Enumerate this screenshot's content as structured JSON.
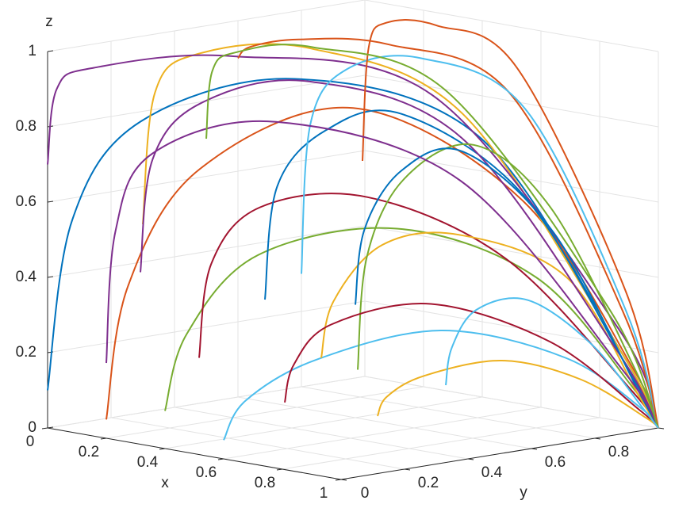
{
  "chart_data": {
    "type": "line3d",
    "xlabel": "x",
    "ylabel": "y",
    "zlabel": "z",
    "xlim": [
      0,
      1
    ],
    "ylim": [
      0,
      1
    ],
    "zlim": [
      0,
      1
    ],
    "xticks": [
      0,
      0.2,
      0.4,
      0.6,
      0.8,
      1
    ],
    "yticks": [
      0,
      0.2,
      0.4,
      0.6,
      0.8,
      1
    ],
    "zticks": [
      0,
      0.2,
      0.4,
      0.6,
      0.8,
      1
    ],
    "grid": true,
    "series": [
      {
        "color": "#0072BD",
        "x": [
          0,
          0.03,
          0.1,
          0.3,
          0.6,
          0.9,
          1
        ],
        "y": [
          0,
          0.05,
          0.2,
          0.5,
          0.8,
          0.97,
          1
        ],
        "z": [
          0.1,
          0.55,
          0.8,
          0.9,
          0.75,
          0.2,
          0
        ]
      },
      {
        "color": "#D95319",
        "x": [
          0.2,
          0.22,
          0.3,
          0.5,
          0.75,
          0.95,
          1
        ],
        "y": [
          0,
          0.05,
          0.2,
          0.5,
          0.8,
          0.97,
          1
        ],
        "z": [
          0.05,
          0.4,
          0.7,
          0.85,
          0.6,
          0.15,
          0
        ]
      },
      {
        "color": "#EDB120",
        "x": [
          0,
          0.02,
          0.08,
          0.25,
          0.55,
          0.9,
          1
        ],
        "y": [
          0.3,
          0.32,
          0.4,
          0.6,
          0.8,
          0.97,
          1
        ],
        "z": [
          0.5,
          0.85,
          0.95,
          0.96,
          0.8,
          0.2,
          0
        ]
      },
      {
        "color": "#7E2F8E",
        "x": [
          0,
          0.01,
          0.05,
          0.2,
          0.5,
          0.9,
          1
        ],
        "y": [
          0,
          0.02,
          0.1,
          0.4,
          0.75,
          0.97,
          1
        ],
        "z": [
          0.7,
          0.9,
          0.95,
          0.96,
          0.85,
          0.25,
          0
        ]
      },
      {
        "color": "#77AC30",
        "x": [
          0.4,
          0.42,
          0.5,
          0.65,
          0.8,
          0.95,
          1
        ],
        "y": [
          0,
          0.05,
          0.2,
          0.5,
          0.8,
          0.97,
          1
        ],
        "z": [
          0.1,
          0.3,
          0.5,
          0.55,
          0.4,
          0.1,
          0
        ]
      },
      {
        "color": "#4DBEEE",
        "x": [
          0.6,
          0.62,
          0.7,
          0.8,
          0.9,
          0.98,
          1
        ],
        "y": [
          0,
          0.05,
          0.2,
          0.5,
          0.8,
          0.97,
          1
        ],
        "z": [
          0.05,
          0.15,
          0.25,
          0.3,
          0.2,
          0.05,
          0
        ]
      },
      {
        "color": "#A2142F",
        "x": [
          0.3,
          0.32,
          0.4,
          0.55,
          0.75,
          0.95,
          1
        ],
        "y": [
          0.2,
          0.22,
          0.3,
          0.5,
          0.75,
          0.96,
          1
        ],
        "z": [
          0.2,
          0.45,
          0.6,
          0.62,
          0.45,
          0.1,
          0
        ]
      },
      {
        "color": "#0072BD",
        "x": [
          0.2,
          0.22,
          0.3,
          0.45,
          0.7,
          0.93,
          1
        ],
        "y": [
          0.5,
          0.52,
          0.6,
          0.7,
          0.85,
          0.97,
          1
        ],
        "z": [
          0.3,
          0.6,
          0.75,
          0.8,
          0.6,
          0.15,
          0
        ]
      },
      {
        "color": "#D95319",
        "x": [
          0,
          0.02,
          0.1,
          0.3,
          0.6,
          0.9,
          1
        ],
        "y": [
          0.6,
          0.62,
          0.7,
          0.8,
          0.9,
          0.98,
          1
        ],
        "z": [
          0.9,
          0.93,
          0.95,
          0.95,
          0.85,
          0.3,
          0
        ]
      },
      {
        "color": "#EDB120",
        "x": [
          0.5,
          0.52,
          0.6,
          0.7,
          0.85,
          0.97,
          1
        ],
        "y": [
          0.4,
          0.42,
          0.5,
          0.65,
          0.85,
          0.97,
          1
        ],
        "z": [
          0.2,
          0.35,
          0.5,
          0.52,
          0.4,
          0.08,
          0
        ]
      },
      {
        "color": "#7E2F8E",
        "x": [
          0.1,
          0.12,
          0.2,
          0.35,
          0.6,
          0.9,
          1
        ],
        "y": [
          0.2,
          0.22,
          0.3,
          0.5,
          0.75,
          0.96,
          1
        ],
        "z": [
          0.4,
          0.7,
          0.85,
          0.9,
          0.75,
          0.2,
          0
        ]
      },
      {
        "color": "#77AC30",
        "x": [
          0.3,
          0.31,
          0.35,
          0.5,
          0.7,
          0.93,
          1
        ],
        "y": [
          0.7,
          0.72,
          0.8,
          0.88,
          0.94,
          0.99,
          1
        ],
        "z": [
          0.1,
          0.4,
          0.6,
          0.7,
          0.55,
          0.15,
          0
        ]
      },
      {
        "color": "#4DBEEE",
        "x": [
          0,
          0.02,
          0.1,
          0.3,
          0.6,
          0.9,
          1
        ],
        "y": [
          0.8,
          0.81,
          0.85,
          0.9,
          0.95,
          0.99,
          1
        ],
        "z": [
          0.3,
          0.7,
          0.85,
          0.9,
          0.8,
          0.3,
          0
        ]
      },
      {
        "color": "#A2142F",
        "x": [
          0.7,
          0.71,
          0.75,
          0.82,
          0.9,
          0.98,
          1
        ],
        "y": [
          0.1,
          0.12,
          0.2,
          0.45,
          0.75,
          0.96,
          1
        ],
        "z": [
          0.15,
          0.25,
          0.35,
          0.38,
          0.25,
          0.05,
          0
        ]
      },
      {
        "color": "#0072BD",
        "x": [
          0.4,
          0.41,
          0.45,
          0.55,
          0.75,
          0.95,
          1
        ],
        "y": [
          0.6,
          0.62,
          0.7,
          0.8,
          0.9,
          0.98,
          1
        ],
        "z": [
          0.3,
          0.5,
          0.65,
          0.7,
          0.5,
          0.1,
          0
        ]
      },
      {
        "color": "#D95319",
        "x": [
          0.1,
          0.11,
          0.15,
          0.3,
          0.55,
          0.9,
          1
        ],
        "y": [
          0.9,
          0.91,
          0.93,
          0.95,
          0.97,
          0.99,
          1
        ],
        "z": [
          0.6,
          0.9,
          0.97,
          0.98,
          0.9,
          0.35,
          0
        ]
      },
      {
        "color": "#EDB120",
        "x": [
          0.8,
          0.81,
          0.85,
          0.9,
          0.95,
          0.99,
          1
        ],
        "y": [
          0.3,
          0.32,
          0.4,
          0.6,
          0.8,
          0.97,
          1
        ],
        "z": [
          0.1,
          0.15,
          0.2,
          0.22,
          0.15,
          0.03,
          0
        ]
      },
      {
        "color": "#7E2F8E",
        "x": [
          0.2,
          0.21,
          0.25,
          0.4,
          0.65,
          0.92,
          1
        ],
        "y": [
          0,
          0.02,
          0.1,
          0.35,
          0.7,
          0.96,
          1
        ],
        "z": [
          0.2,
          0.55,
          0.75,
          0.82,
          0.65,
          0.15,
          0
        ]
      },
      {
        "color": "#77AC30",
        "x": [
          0,
          0.01,
          0.05,
          0.2,
          0.5,
          0.88,
          1
        ],
        "y": [
          0.5,
          0.51,
          0.55,
          0.65,
          0.8,
          0.96,
          1
        ],
        "z": [
          0.7,
          0.88,
          0.93,
          0.95,
          0.85,
          0.3,
          0
        ]
      },
      {
        "color": "#4DBEEE",
        "x": [
          0.6,
          0.61,
          0.65,
          0.75,
          0.88,
          0.97,
          1
        ],
        "y": [
          0.7,
          0.71,
          0.75,
          0.82,
          0.9,
          0.98,
          1
        ],
        "z": [
          0.1,
          0.2,
          0.3,
          0.33,
          0.22,
          0.05,
          0
        ]
      }
    ]
  }
}
